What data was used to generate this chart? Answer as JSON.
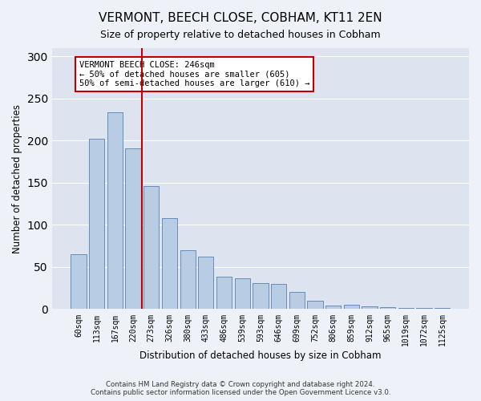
{
  "title": "VERMONT, BEECH CLOSE, COBHAM, KT11 2EN",
  "subtitle": "Size of property relative to detached houses in Cobham",
  "xlabel": "Distribution of detached houses by size in Cobham",
  "ylabel": "Number of detached properties",
  "bar_labels": [
    "60sqm",
    "113sqm",
    "167sqm",
    "220sqm",
    "273sqm",
    "326sqm",
    "380sqm",
    "433sqm",
    "486sqm",
    "539sqm",
    "593sqm",
    "646sqm",
    "699sqm",
    "752sqm",
    "806sqm",
    "859sqm",
    "912sqm",
    "965sqm",
    "1019sqm",
    "1072sqm",
    "1125sqm"
  ],
  "bar_values": [
    65,
    202,
    234,
    191,
    146,
    108,
    70,
    62,
    39,
    37,
    31,
    30,
    20,
    10,
    4,
    5,
    3,
    2,
    1,
    1,
    1
  ],
  "bar_color": "#b8cce4",
  "bar_edge_color": "#5580b0",
  "vline_x": 3.5,
  "vline_color": "#c00000",
  "annotation_text": "VERMONT BEECH CLOSE: 246sqm\n← 50% of detached houses are smaller (605)\n50% of semi-detached houses are larger (610) →",
  "annotation_box_color": "#ffffff",
  "annotation_box_edge": "#c00000",
  "ylim": [
    0,
    310
  ],
  "yticks": [
    0,
    50,
    100,
    150,
    200,
    250,
    300
  ],
  "footer_line1": "Contains HM Land Registry data © Crown copyright and database right 2024.",
  "footer_line2": "Contains public sector information licensed under the Open Government Licence v3.0.",
  "bg_color": "#eef2f8",
  "plot_bg_color": "#dde4f0",
  "grid_color": "#ffffff"
}
